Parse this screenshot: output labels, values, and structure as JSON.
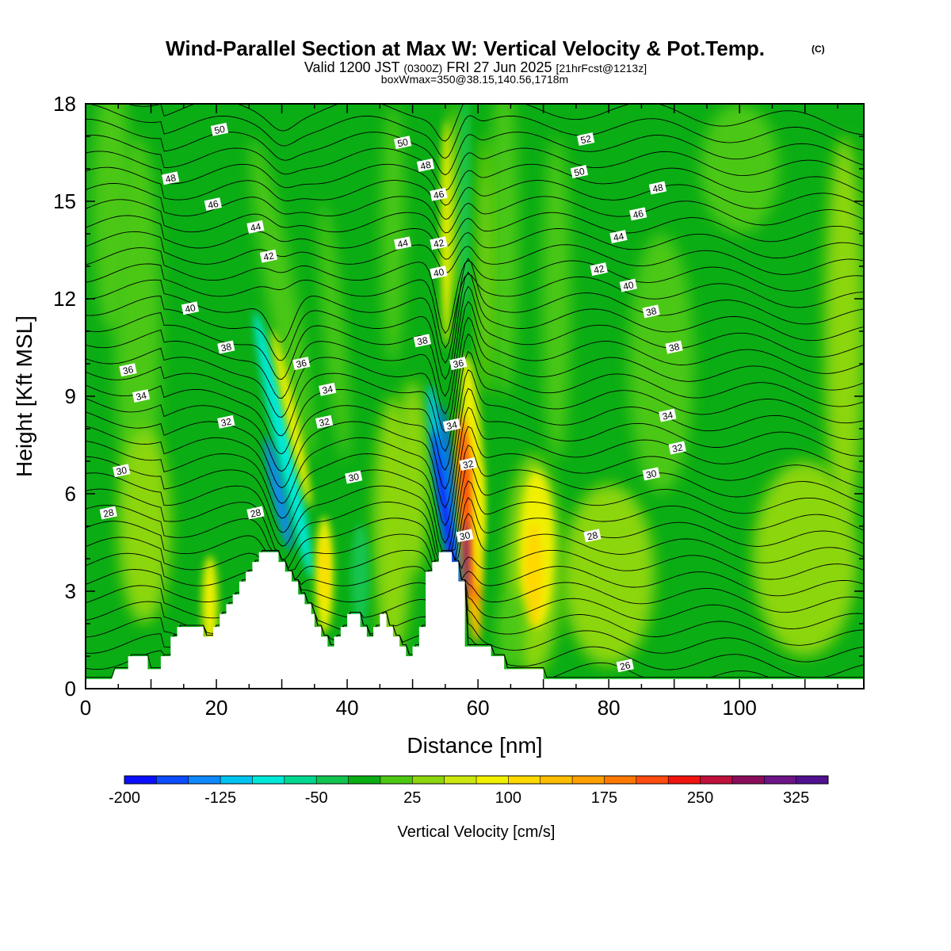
{
  "title": {
    "main": "Wind-Parallel Section at Max W: Vertical Velocity & Pot.Temp.",
    "copyright": "(C)",
    "valid_prefix": "Valid 1200 JST",
    "valid_utc": "(0300Z)",
    "valid_date": "FRI 27 Jun 2025",
    "forecast": "[21hrFcst@1213z]",
    "box": "boxWmax=350@38.15,140.56,1718m"
  },
  "colors": {
    "background_green": "#0aad14",
    "terrain": "#ffffff",
    "contour": "#000000"
  },
  "chart_data": {
    "type": "heatmap",
    "xlabel": "Distance [nm]",
    "ylabel": "Height [Kft MSL]",
    "xlim": [
      0,
      119
    ],
    "ylim": [
      0,
      18
    ],
    "x_ticks": [
      0,
      20,
      40,
      60,
      80,
      100
    ],
    "y_ticks": [
      0,
      3,
      6,
      9,
      12,
      15,
      18
    ],
    "colorbar": {
      "title": "Vertical Velocity [cm/s]",
      "min": -200,
      "max": 350,
      "step": 25,
      "tick_labels": [
        "-200",
        "-125",
        "-50",
        "25",
        "100",
        "175",
        "250",
        "325"
      ],
      "colors": [
        "#0a10ff",
        "#0c4cff",
        "#0d88ff",
        "#00c4f0",
        "#00e8d8",
        "#00d890",
        "#12c450",
        "#0aad14",
        "#4cc812",
        "#8cd610",
        "#cce810",
        "#f0f000",
        "#ffd800",
        "#ffbc00",
        "#ffa000",
        "#ff7800",
        "#ff4c10",
        "#f01410",
        "#c0103c",
        "#8c0c5c",
        "#6c1488",
        "#501090"
      ]
    },
    "terrain_profile": [
      [
        0,
        0.3
      ],
      [
        4,
        0.3
      ],
      [
        4.5,
        0.6
      ],
      [
        6.5,
        0.6
      ],
      [
        6.5,
        1.0
      ],
      [
        9.5,
        1.0
      ],
      [
        9.5,
        0.6
      ],
      [
        11.5,
        0.6
      ],
      [
        11.5,
        1.0
      ],
      [
        13,
        1.0
      ],
      [
        13,
        1.6
      ],
      [
        14,
        1.6
      ],
      [
        14,
        1.9
      ],
      [
        18,
        1.9
      ],
      [
        18,
        1.6
      ],
      [
        19.5,
        1.6
      ],
      [
        19.5,
        1.9
      ],
      [
        20.5,
        1.9
      ],
      [
        20.5,
        2.3
      ],
      [
        21.5,
        2.3
      ],
      [
        21.5,
        2.6
      ],
      [
        22.5,
        2.6
      ],
      [
        22.5,
        2.9
      ],
      [
        23.5,
        2.9
      ],
      [
        23.5,
        3.3
      ],
      [
        24.5,
        3.3
      ],
      [
        24.5,
        3.6
      ],
      [
        25.5,
        3.6
      ],
      [
        25.5,
        3.9
      ],
      [
        26.5,
        3.9
      ],
      [
        26.5,
        4.2
      ],
      [
        29.5,
        4.2
      ],
      [
        29.5,
        3.9
      ],
      [
        30.5,
        3.9
      ],
      [
        30.5,
        3.6
      ],
      [
        31.5,
        3.6
      ],
      [
        31.5,
        3.3
      ],
      [
        32.5,
        3.3
      ],
      [
        32.5,
        2.9
      ],
      [
        33.5,
        2.9
      ],
      [
        33.5,
        2.6
      ],
      [
        34.5,
        2.6
      ],
      [
        34.5,
        2.3
      ],
      [
        35,
        2.3
      ],
      [
        35,
        1.9
      ],
      [
        36,
        1.9
      ],
      [
        36,
        1.6
      ],
      [
        37,
        1.6
      ],
      [
        37,
        1.3
      ],
      [
        38,
        1.3
      ],
      [
        38,
        1.6
      ],
      [
        39,
        1.6
      ],
      [
        39,
        1.9
      ],
      [
        40,
        1.9
      ],
      [
        40,
        2.3
      ],
      [
        42,
        2.3
      ],
      [
        42,
        1.9
      ],
      [
        43,
        1.9
      ],
      [
        43,
        1.6
      ],
      [
        44,
        1.6
      ],
      [
        44,
        1.9
      ],
      [
        45,
        1.9
      ],
      [
        45,
        2.3
      ],
      [
        46,
        2.3
      ],
      [
        46,
        1.9
      ],
      [
        47,
        1.9
      ],
      [
        47,
        1.6
      ],
      [
        48,
        1.6
      ],
      [
        48,
        1.3
      ],
      [
        49,
        1.3
      ],
      [
        49,
        1.0
      ],
      [
        50,
        1.0
      ],
      [
        50,
        1.3
      ],
      [
        51,
        1.3
      ],
      [
        51,
        1.9
      ],
      [
        52,
        1.9
      ],
      [
        52,
        3.6
      ],
      [
        53,
        3.6
      ],
      [
        53,
        3.9
      ],
      [
        54,
        3.9
      ],
      [
        54,
        4.2
      ],
      [
        56,
        4.2
      ],
      [
        56,
        3.9
      ],
      [
        57,
        3.9
      ],
      [
        57,
        3.3
      ],
      [
        58,
        3.3
      ],
      [
        58,
        1.3
      ],
      [
        60,
        1.3
      ],
      [
        60,
        1.3
      ],
      [
        62,
        1.3
      ],
      [
        62,
        1.0
      ],
      [
        64,
        1.0
      ],
      [
        64,
        0.6
      ],
      [
        70,
        0.6
      ],
      [
        70,
        0.3
      ],
      [
        119,
        0.3
      ]
    ],
    "contour_labels": [
      {
        "v": "50",
        "x": 20.5,
        "y": 17.2
      },
      {
        "v": "50",
        "x": 48.5,
        "y": 16.8
      },
      {
        "v": "52",
        "x": 76.5,
        "y": 16.9
      },
      {
        "v": "48",
        "x": 13,
        "y": 15.7
      },
      {
        "v": "48",
        "x": 52,
        "y": 16.1
      },
      {
        "v": "50",
        "x": 75.5,
        "y": 15.9
      },
      {
        "v": "48",
        "x": 87.5,
        "y": 15.4
      },
      {
        "v": "46",
        "x": 19.5,
        "y": 14.9
      },
      {
        "v": "46",
        "x": 54,
        "y": 15.2
      },
      {
        "v": "46",
        "x": 84.5,
        "y": 14.6
      },
      {
        "v": "44",
        "x": 26,
        "y": 14.2
      },
      {
        "v": "44",
        "x": 48.5,
        "y": 13.7
      },
      {
        "v": "42",
        "x": 54,
        "y": 13.7
      },
      {
        "v": "44",
        "x": 81.5,
        "y": 13.9
      },
      {
        "v": "42",
        "x": 28,
        "y": 13.3
      },
      {
        "v": "40",
        "x": 54,
        "y": 12.8
      },
      {
        "v": "42",
        "x": 78.5,
        "y": 12.9
      },
      {
        "v": "40",
        "x": 83,
        "y": 12.4
      },
      {
        "v": "40",
        "x": 16,
        "y": 11.7
      },
      {
        "v": "38",
        "x": 86.5,
        "y": 11.6
      },
      {
        "v": "38",
        "x": 21.5,
        "y": 10.5
      },
      {
        "v": "38",
        "x": 51.5,
        "y": 10.7
      },
      {
        "v": "38",
        "x": 90,
        "y": 10.5
      },
      {
        "v": "36",
        "x": 6.5,
        "y": 9.8
      },
      {
        "v": "36",
        "x": 33,
        "y": 10.0
      },
      {
        "v": "36",
        "x": 57,
        "y": 10.0
      },
      {
        "v": "34",
        "x": 8.5,
        "y": 9.0
      },
      {
        "v": "34",
        "x": 37,
        "y": 9.2
      },
      {
        "v": "34",
        "x": 89,
        "y": 8.4
      },
      {
        "v": "32",
        "x": 21.5,
        "y": 8.2
      },
      {
        "v": "32",
        "x": 36.5,
        "y": 8.2
      },
      {
        "v": "34",
        "x": 56,
        "y": 8.1
      },
      {
        "v": "32",
        "x": 90.5,
        "y": 7.4
      },
      {
        "v": "32",
        "x": 58.5,
        "y": 6.9
      },
      {
        "v": "30",
        "x": 5.5,
        "y": 6.7
      },
      {
        "v": "30",
        "x": 41,
        "y": 6.5
      },
      {
        "v": "30",
        "x": 86.5,
        "y": 6.6
      },
      {
        "v": "28",
        "x": 3.5,
        "y": 5.4
      },
      {
        "v": "28",
        "x": 26,
        "y": 5.4
      },
      {
        "v": "30",
        "x": 58,
        "y": 4.7
      },
      {
        "v": "28",
        "x": 77.5,
        "y": 4.7
      },
      {
        "v": "26",
        "x": 82.5,
        "y": 0.7
      }
    ]
  }
}
